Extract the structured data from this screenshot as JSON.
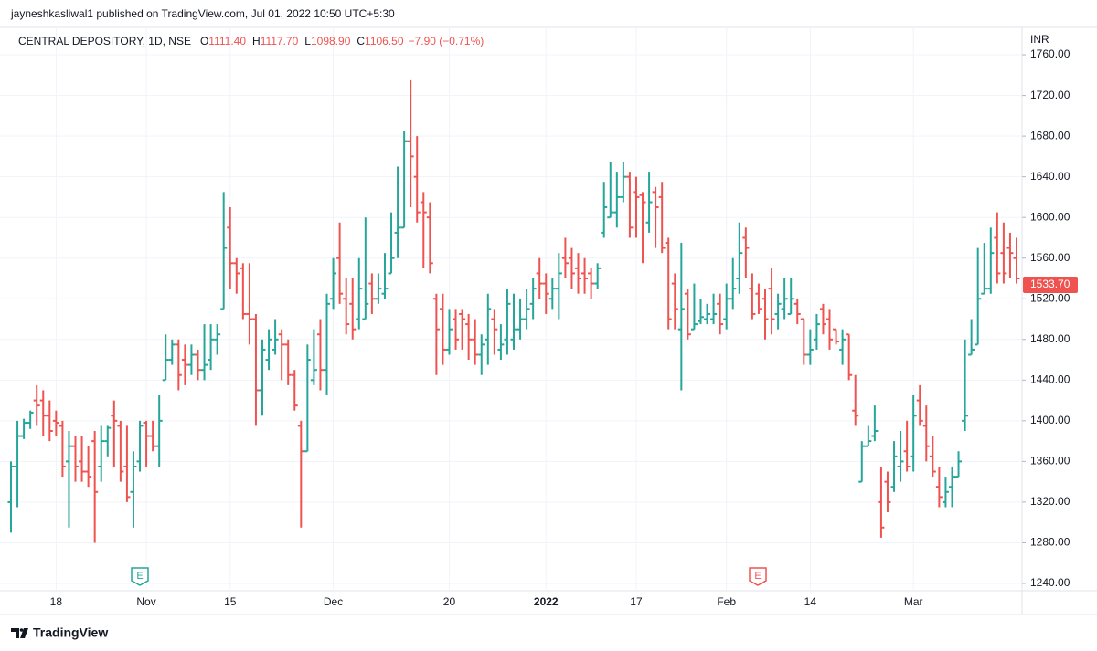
{
  "chart_data": {
    "type": "ohlc",
    "publisher_line": "jayneshkasliwal1 published on TradingView.com, Jul 01, 2022 10:50 UTC+5:30",
    "symbol": "CENTRAL DEPOSITORY, 1D, NSE",
    "legend": [
      {
        "label": "O",
        "value": "1111.40"
      },
      {
        "label": "H",
        "value": "1117.70"
      },
      {
        "label": "L",
        "value": "1098.90"
      },
      {
        "label": "C",
        "value": "1106.50"
      }
    ],
    "change": "−7.90 (−0.71%)",
    "currency": "INR",
    "event_marker": "E",
    "brand": "TradingView",
    "up_color": "#26a69a",
    "down_color": "#ef5350",
    "grid": true,
    "ylim": [
      1232.8,
      1787
    ],
    "yticks": [
      {
        "value": 1240,
        "label": "1240.00"
      },
      {
        "value": 1280,
        "label": "1280.00"
      },
      {
        "value": 1320,
        "label": "1320.00"
      },
      {
        "value": 1360,
        "label": "1360.00"
      },
      {
        "value": 1400,
        "label": "1400.00"
      },
      {
        "value": 1440,
        "label": "1440.00"
      },
      {
        "value": 1480,
        "label": "1480.00"
      },
      {
        "value": 1520,
        "label": "1520.00"
      },
      {
        "value": 1560,
        "label": "1560.00"
      },
      {
        "value": 1600,
        "label": "1600.00"
      },
      {
        "value": 1640,
        "label": "1640.00"
      },
      {
        "value": 1680,
        "label": "1680.00"
      },
      {
        "value": 1720,
        "label": "1720.00"
      },
      {
        "value": 1760,
        "label": "1760.00"
      }
    ],
    "last_price": {
      "value": 1533.7,
      "label": "1533.70"
    },
    "categories": [
      null,
      null,
      null,
      null,
      null,
      null,
      null,
      "18",
      null,
      null,
      null,
      null,
      null,
      null,
      null,
      null,
      null,
      null,
      null,
      null,
      null,
      "Nov",
      null,
      null,
      null,
      null,
      null,
      null,
      null,
      null,
      null,
      null,
      null,
      null,
      "15",
      null,
      null,
      null,
      null,
      null,
      null,
      null,
      null,
      null,
      null,
      null,
      null,
      null,
      null,
      null,
      "Dec",
      null,
      null,
      null,
      null,
      null,
      null,
      null,
      null,
      null,
      null,
      null,
      null,
      null,
      null,
      null,
      null,
      null,
      "20",
      null,
      null,
      null,
      null,
      null,
      null,
      null,
      null,
      null,
      null,
      null,
      null,
      null,
      null,
      "2022",
      null,
      null,
      null,
      null,
      null,
      null,
      null,
      null,
      null,
      null,
      null,
      null,
      null,
      "17",
      null,
      null,
      null,
      null,
      null,
      null,
      null,
      null,
      null,
      null,
      null,
      null,
      null,
      "Feb",
      null,
      null,
      null,
      null,
      null,
      null,
      null,
      null,
      null,
      null,
      null,
      null,
      "14",
      null,
      null,
      null,
      null,
      null,
      null,
      null,
      null,
      null,
      null,
      null,
      null,
      null,
      null,
      null,
      "Mar",
      null,
      null,
      null,
      null,
      null,
      null,
      null,
      null,
      null,
      null,
      null,
      null,
      null,
      null,
      null,
      null
    ],
    "bars": [
      [
        1320,
        1360,
        1290,
        1355
      ],
      [
        1355,
        1400,
        1315,
        1385
      ],
      [
        1385,
        1402,
        1382,
        1398
      ],
      [
        1398,
        1410,
        1392,
        1408
      ],
      [
        1420,
        1435,
        1395,
        1415
      ],
      [
        1420,
        1430,
        1385,
        1405
      ],
      [
        1405,
        1420,
        1380,
        1390
      ],
      [
        1400,
        1410,
        1385,
        1398
      ],
      [
        1395,
        1400,
        1345,
        1355
      ],
      [
        1360,
        1390,
        1295,
        1375
      ],
      [
        1375,
        1385,
        1340,
        1355
      ],
      [
        1360,
        1385,
        1340,
        1350
      ],
      [
        1350,
        1375,
        1335,
        1345
      ],
      [
        1380,
        1390,
        1280,
        1330
      ],
      [
        1355,
        1395,
        1340,
        1380
      ],
      [
        1380,
        1395,
        1365,
        1393
      ],
      [
        1405,
        1420,
        1355,
        1400
      ],
      [
        1395,
        1400,
        1340,
        1350
      ],
      [
        1355,
        1395,
        1320,
        1325
      ],
      [
        1330,
        1370,
        1295,
        1355
      ],
      [
        1360,
        1400,
        1350,
        1395
      ],
      [
        1398,
        1400,
        1355,
        1385
      ],
      [
        1385,
        1400,
        1370,
        1375
      ],
      [
        1375,
        1425,
        1355,
        1400
      ],
      [
        1440,
        1485,
        1440,
        1460
      ],
      [
        1460,
        1480,
        1455,
        1475
      ],
      [
        1475,
        1480,
        1430,
        1445
      ],
      [
        1460,
        1475,
        1435,
        1455
      ],
      [
        1455,
        1475,
        1445,
        1465
      ],
      [
        1465,
        1470,
        1440,
        1450
      ],
      [
        1450,
        1495,
        1440,
        1455
      ],
      [
        1460,
        1495,
        1450,
        1480
      ],
      [
        1480,
        1495,
        1465,
        1485
      ],
      [
        1510,
        1625,
        1510,
        1570
      ],
      [
        1590,
        1610,
        1530,
        1555
      ],
      [
        1555,
        1560,
        1525,
        1545
      ],
      [
        1550,
        1555,
        1500,
        1505
      ],
      [
        1505,
        1555,
        1475,
        1500
      ],
      [
        1500,
        1505,
        1395,
        1430
      ],
      [
        1430,
        1480,
        1405,
        1470
      ],
      [
        1460,
        1490,
        1450,
        1480
      ],
      [
        1470,
        1500,
        1465,
        1480
      ],
      [
        1485,
        1490,
        1440,
        1475
      ],
      [
        1475,
        1480,
        1435,
        1445
      ],
      [
        1445,
        1450,
        1410,
        1415
      ],
      [
        1395,
        1400,
        1295,
        1370
      ],
      [
        1370,
        1475,
        1370,
        1460
      ],
      [
        1440,
        1490,
        1435,
        1450
      ],
      [
        1485,
        1500,
        1430,
        1450
      ],
      [
        1450,
        1525,
        1425,
        1515
      ],
      [
        1520,
        1560,
        1510,
        1545
      ],
      [
        1560,
        1595,
        1515,
        1525
      ],
      [
        1520,
        1540,
        1485,
        1495
      ],
      [
        1515,
        1540,
        1480,
        1490
      ],
      [
        1500,
        1560,
        1490,
        1530
      ],
      [
        1500,
        1600,
        1500,
        1515
      ],
      [
        1535,
        1545,
        1505,
        1520
      ],
      [
        1520,
        1545,
        1515,
        1530
      ],
      [
        1525,
        1565,
        1520,
        1530
      ],
      [
        1545,
        1605,
        1545,
        1560
      ],
      [
        1585,
        1650,
        1560,
        1590
      ],
      [
        1590,
        1685,
        1590,
        1675
      ],
      [
        1675,
        1735,
        1610,
        1660
      ],
      [
        1640,
        1680,
        1595,
        1605
      ],
      [
        1615,
        1625,
        1550,
        1605
      ],
      [
        1600,
        1615,
        1545,
        1555
      ],
      [
        1520,
        1525,
        1445,
        1490
      ],
      [
        1510,
        1525,
        1455,
        1470
      ],
      [
        1470,
        1510,
        1465,
        1490
      ],
      [
        1500,
        1510,
        1470,
        1480
      ],
      [
        1505,
        1510,
        1470,
        1500
      ],
      [
        1495,
        1505,
        1460,
        1480
      ],
      [
        1480,
        1500,
        1455,
        1465
      ],
      [
        1465,
        1485,
        1445,
        1475
      ],
      [
        1480,
        1525,
        1455,
        1510
      ],
      [
        1500,
        1510,
        1465,
        1490
      ],
      [
        1470,
        1495,
        1460,
        1475
      ],
      [
        1480,
        1530,
        1465,
        1515
      ],
      [
        1480,
        1525,
        1470,
        1490
      ],
      [
        1490,
        1520,
        1480,
        1500
      ],
      [
        1500,
        1530,
        1490,
        1510
      ],
      [
        1515,
        1540,
        1500,
        1530
      ],
      [
        1545,
        1560,
        1520,
        1535
      ],
      [
        1535,
        1545,
        1505,
        1525
      ],
      [
        1520,
        1540,
        1510,
        1530
      ],
      [
        1530,
        1565,
        1500,
        1545
      ],
      [
        1560,
        1580,
        1540,
        1555
      ],
      [
        1560,
        1570,
        1530,
        1545
      ],
      [
        1550,
        1565,
        1525,
        1540
      ],
      [
        1545,
        1560,
        1525,
        1540
      ],
      [
        1545,
        1550,
        1520,
        1535
      ],
      [
        1535,
        1555,
        1530,
        1550
      ],
      [
        1585,
        1635,
        1580,
        1610
      ],
      [
        1600,
        1655,
        1600,
        1605
      ],
      [
        1605,
        1645,
        1590,
        1620
      ],
      [
        1620,
        1655,
        1615,
        1640
      ],
      [
        1640,
        1645,
        1580,
        1590
      ],
      [
        1625,
        1640,
        1580,
        1620
      ],
      [
        1622,
        1625,
        1555,
        1615
      ],
      [
        1595,
        1645,
        1585,
        1615
      ],
      [
        1625,
        1630,
        1570,
        1610
      ],
      [
        1620,
        1635,
        1565,
        1570
      ],
      [
        1575,
        1580,
        1490,
        1500
      ],
      [
        1535,
        1545,
        1490,
        1510
      ],
      [
        1490,
        1575,
        1430,
        1510
      ],
      [
        1525,
        1530,
        1480,
        1485
      ],
      [
        1490,
        1535,
        1490,
        1495
      ],
      [
        1498,
        1520,
        1495,
        1502
      ],
      [
        1500,
        1515,
        1495,
        1505
      ],
      [
        1500,
        1525,
        1495,
        1505
      ],
      [
        1515,
        1525,
        1485,
        1495
      ],
      [
        1500,
        1535,
        1490,
        1520
      ],
      [
        1520,
        1560,
        1510,
        1530
      ],
      [
        1540,
        1595,
        1525,
        1565
      ],
      [
        1580,
        1590,
        1540,
        1570
      ],
      [
        1530,
        1545,
        1500,
        1505
      ],
      [
        1525,
        1535,
        1505,
        1510
      ],
      [
        1520,
        1530,
        1480,
        1500
      ],
      [
        1530,
        1550,
        1485,
        1500
      ],
      [
        1505,
        1525,
        1490,
        1515
      ],
      [
        1510,
        1540,
        1500,
        1520
      ],
      [
        1505,
        1540,
        1505,
        1520
      ],
      [
        1515,
        1520,
        1495,
        1505
      ],
      [
        1500,
        1500,
        1455,
        1465
      ],
      [
        1465,
        1490,
        1455,
        1470
      ],
      [
        1480,
        1505,
        1470,
        1495
      ],
      [
        1510,
        1515,
        1485,
        1495
      ],
      [
        1500,
        1510,
        1470,
        1480
      ],
      [
        1490,
        1490,
        1475,
        1478
      ],
      [
        1470,
        1490,
        1455,
        1480
      ],
      [
        1485,
        1485,
        1440,
        1445
      ],
      [
        1410,
        1445,
        1395,
        1405
      ],
      [
        1340,
        1380,
        1340,
        1375
      ],
      [
        1375,
        1395,
        1375,
        1380
      ],
      [
        1385,
        1415,
        1380,
        1390
      ],
      [
        1320,
        1355,
        1285,
        1295
      ],
      [
        1340,
        1350,
        1310,
        1320
      ],
      [
        1335,
        1380,
        1330,
        1365
      ],
      [
        1355,
        1390,
        1340,
        1360
      ],
      [
        1370,
        1400,
        1350,
        1355
      ],
      [
        1365,
        1425,
        1350,
        1405
      ],
      [
        1420,
        1435,
        1395,
        1400
      ],
      [
        1395,
        1415,
        1360,
        1375
      ],
      [
        1365,
        1385,
        1345,
        1350
      ],
      [
        1335,
        1355,
        1315,
        1325
      ],
      [
        1320,
        1345,
        1315,
        1330
      ],
      [
        1335,
        1355,
        1315,
        1345
      ],
      [
        1345,
        1370,
        1345,
        1360
      ],
      [
        1400,
        1480,
        1390,
        1405
      ],
      [
        1465,
        1500,
        1465,
        1470
      ],
      [
        1475,
        1570,
        1475,
        1520
      ],
      [
        1525,
        1575,
        1525,
        1530
      ],
      [
        1530,
        1590,
        1525,
        1565
      ],
      [
        1580,
        1605,
        1535,
        1545
      ],
      [
        1565,
        1595,
        1535,
        1545
      ],
      [
        1570,
        1585,
        1540,
        1565
      ],
      [
        1560,
        1580,
        1535,
        1540
      ]
    ]
  }
}
